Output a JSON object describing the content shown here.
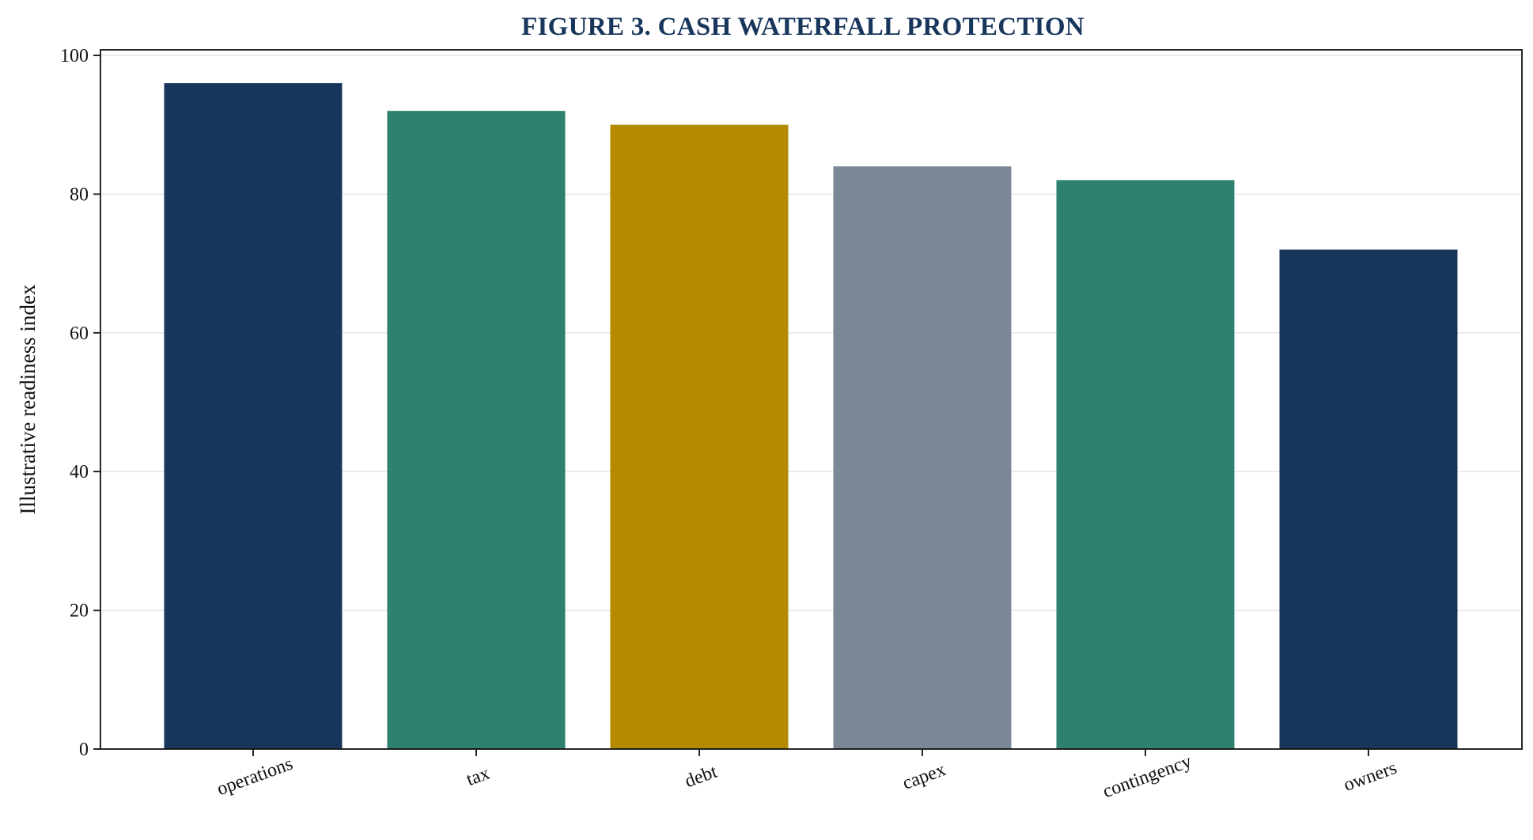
{
  "chart_data": {
    "type": "bar",
    "title": "FIGURE 3. CASH WATERFALL PROTECTION",
    "xlabel": "",
    "ylabel": "Illustrative readiness index",
    "categories": [
      "operations",
      "tax",
      "debt",
      "capex",
      "contingency",
      "owners"
    ],
    "values": [
      96,
      92,
      90,
      84,
      82,
      72
    ],
    "bar_colors": [
      "#18365c",
      "#2e806f",
      "#b38a00",
      "#7a8797",
      "#2e806f",
      "#18365c"
    ],
    "ylim": [
      0,
      100
    ],
    "yticks": [
      0,
      20,
      40,
      60,
      80,
      100
    ],
    "grid": "horizontal",
    "legend": "none",
    "colors": {
      "title": "#18365c",
      "axis": "#111111",
      "grid": "#e6e6e6"
    }
  }
}
